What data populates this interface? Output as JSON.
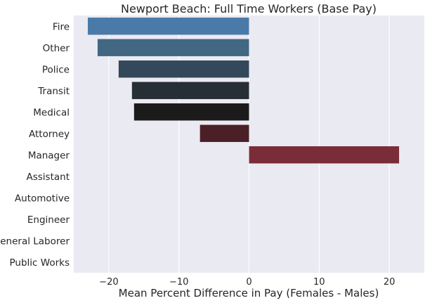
{
  "chart_data": {
    "type": "bar",
    "orientation": "horizontal",
    "title": "Newport Beach: Full Time Workers (Base Pay)",
    "xlabel": "Mean Percent Difference in Pay (Females - Males)",
    "ylabel": "",
    "xlim": [
      -25,
      25
    ],
    "xticks": [
      -20,
      -10,
      0,
      10,
      20
    ],
    "xtick_labels": [
      "−20",
      "−10",
      "0",
      "10",
      "20"
    ],
    "grid": true,
    "categories": [
      "Fire",
      "Other",
      "Police",
      "Transit",
      "Medical",
      "Attorney",
      "Manager",
      "Assistant",
      "Automotive",
      "Engineer",
      "General Laborer",
      "Public Works"
    ],
    "values": [
      -23.0,
      -21.6,
      -18.6,
      -16.7,
      -16.4,
      -7.0,
      21.4,
      0,
      0,
      0,
      0,
      0
    ],
    "colors": [
      "#4a7aa8",
      "#416783",
      "#33485a",
      "#262e36",
      "#1b1b1c",
      "#4a2026",
      "#7a2d38",
      "#7a2d38",
      "#7a2d38",
      "#7a2d38",
      "#7a2d38",
      "#7a2d38"
    ],
    "background": "#eaeaf2"
  }
}
